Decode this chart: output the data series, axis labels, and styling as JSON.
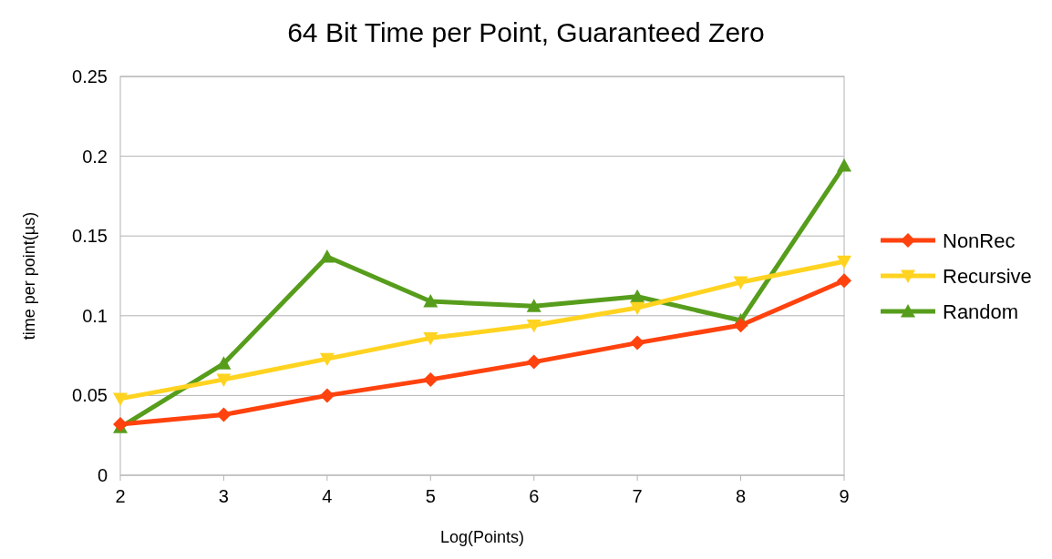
{
  "chart_data": {
    "type": "line",
    "title": "64 Bit Time per Point, Guaranteed Zero",
    "xlabel": "Log(Points)",
    "ylabel": "time per point(µs)",
    "x": [
      2,
      3,
      4,
      5,
      6,
      7,
      8,
      9
    ],
    "xlim": [
      2,
      9
    ],
    "xticks": [
      2,
      3,
      4,
      5,
      6,
      7,
      8,
      9
    ],
    "ylim": [
      0,
      0.25
    ],
    "yticks": [
      0,
      0.05,
      0.1,
      0.15,
      0.2,
      0.25
    ],
    "grid": "y",
    "legend": "right",
    "series": [
      {
        "name": "NonRec",
        "color": "#ff420e",
        "marker": "diamond",
        "values": [
          0.032,
          0.038,
          0.05,
          0.06,
          0.071,
          0.083,
          0.094,
          0.122
        ]
      },
      {
        "name": "Recursive",
        "color": "#ffd320",
        "marker": "triangle-down",
        "values": [
          0.048,
          0.06,
          0.073,
          0.086,
          0.094,
          0.105,
          0.121,
          0.134
        ]
      },
      {
        "name": "Random",
        "color": "#579d1c",
        "marker": "triangle",
        "values": [
          0.03,
          0.07,
          0.137,
          0.109,
          0.106,
          0.112,
          0.097,
          0.194
        ]
      }
    ]
  }
}
